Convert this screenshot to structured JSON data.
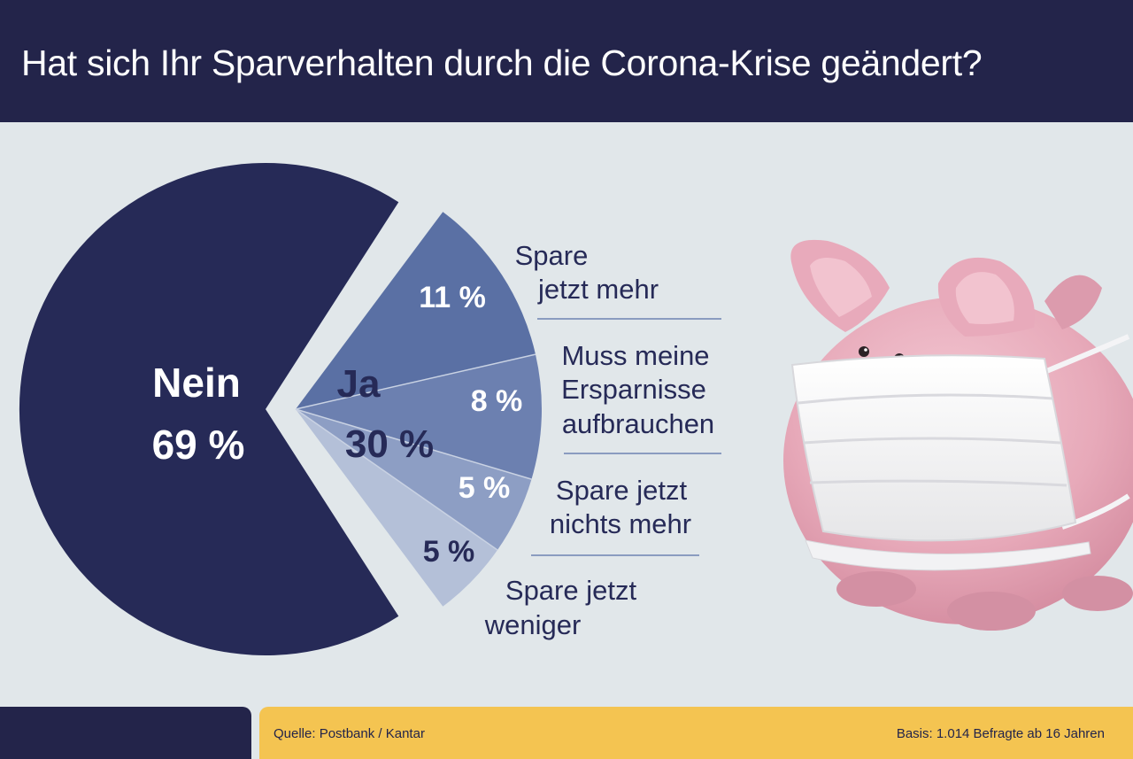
{
  "title": "Hat sich Ihr Sparverhalten durch die Corona-Krise geändert?",
  "chart_data": {
    "type": "pie",
    "slices": [
      {
        "label": "Nein",
        "value": 69,
        "display": "69 %",
        "color": "#262a57"
      },
      {
        "label": "Spare jetzt mehr",
        "value": 11,
        "display": "11 %",
        "color": "#5a70a4"
      },
      {
        "label": "Muss meine Ersparnisse aufbrauchen",
        "value": 8,
        "display": "8 %",
        "color": "#6c80b0"
      },
      {
        "label": "Spare jetzt nichts mehr",
        "value": 5,
        "display": "5 %",
        "color": "#8d9ec4"
      },
      {
        "label": "Spare jetzt weniger",
        "value": 5,
        "display": "5 %",
        "color": "#b4c0d8"
      }
    ],
    "group": {
      "label": "Ja",
      "value": 30,
      "display": "30 %"
    },
    "categories": {
      "nein": [
        "Nein",
        "69 %"
      ],
      "mehr": [
        "Spare",
        "jetzt mehr"
      ],
      "aufbrauchen": [
        "Muss meine",
        "Ersparnisse",
        "aufbrauchen"
      ],
      "nichts": [
        "Spare jetzt",
        "nichts mehr"
      ],
      "weniger": [
        "Spare jetzt",
        "weniger"
      ]
    }
  },
  "footer": {
    "source": "Quelle: Postbank / Kantar",
    "basis": "Basis: 1.014 Befragte ab 16 Jahren"
  }
}
